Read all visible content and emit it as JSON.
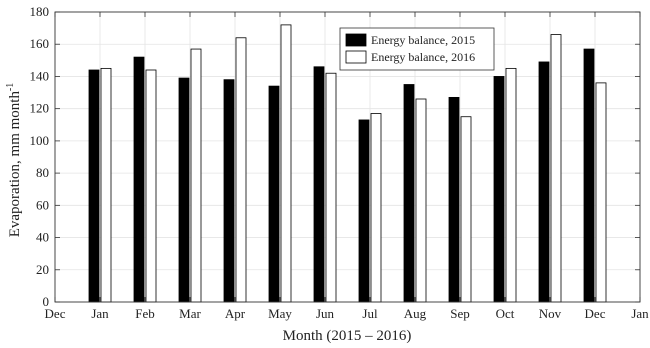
{
  "chart_data": {
    "type": "bar",
    "title": "",
    "xlabel": "Month (2015 – 2016)",
    "ylabel": "Evaporation, mm month",
    "ylabel_superscript": "-1",
    "ylim": [
      0,
      180
    ],
    "yticks": [
      "0",
      "20",
      "40",
      "60",
      "80",
      "100",
      "120",
      "140",
      "160",
      "180"
    ],
    "xticks": [
      "Dec",
      "Jan",
      "Feb",
      "Mar",
      "Apr",
      "May",
      "Jun",
      "Jul",
      "Aug",
      "Sep",
      "Oct",
      "Nov",
      "Dec",
      "Jan"
    ],
    "categories": [
      "Jan",
      "Feb",
      "Mar",
      "Apr",
      "May",
      "Jun",
      "Jul",
      "Aug",
      "Sep",
      "Oct",
      "Nov",
      "Dec"
    ],
    "grid": true,
    "legend_position": "top-right",
    "series": [
      {
        "name": "Energy balance, 2015",
        "color": "#000000",
        "values": [
          144,
          152,
          139,
          138,
          134,
          146,
          113,
          135,
          127,
          140,
          149,
          157
        ]
      },
      {
        "name": "Energy balance, 2016",
        "color": "#ffffff",
        "values": [
          145,
          144,
          157,
          164,
          172,
          142,
          117,
          126,
          115,
          145,
          166,
          136
        ]
      }
    ]
  }
}
